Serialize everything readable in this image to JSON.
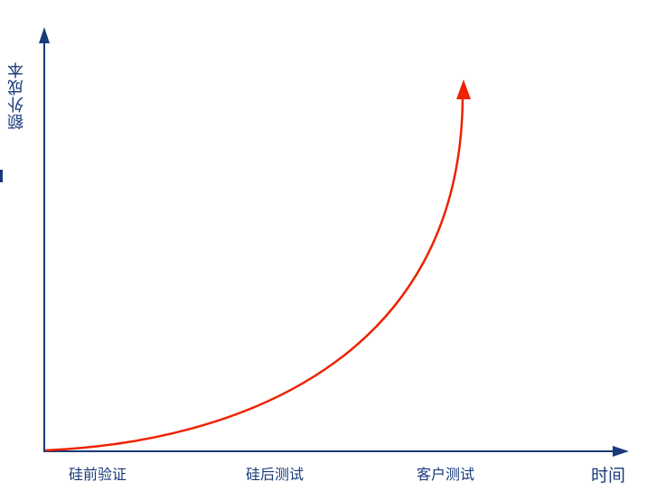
{
  "diagram": {
    "y_axis_label": "额外成本",
    "x_axis_label": "时间",
    "x_categories": [
      "硅前验证",
      "硅后测试",
      "客户测试"
    ],
    "colors": {
      "axis": "#1a3a7a",
      "curve": "#ee2200",
      "text": "#1a3a7a"
    }
  }
}
